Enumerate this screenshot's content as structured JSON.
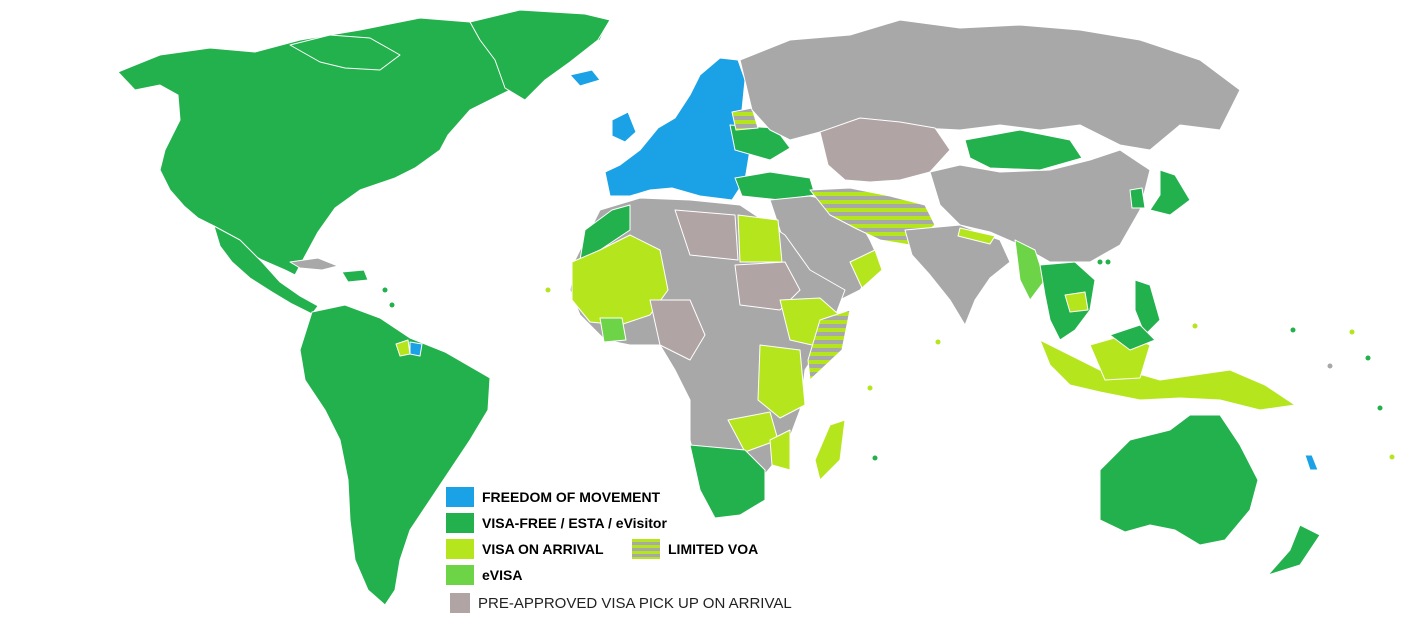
{
  "colors": {
    "freedom": "#1AA1E6",
    "visa_free": "#22B14C",
    "voa": "#B5E61D",
    "evisa": "#6DD347",
    "preapproved": "#B0A4A4",
    "visa_required": "#A8A8A8",
    "limited_voa_stripe_a": "#B5E61D",
    "limited_voa_stripe_b": "#A8A8A8"
  },
  "legend": {
    "freedom": "FREEDOM OF MOVEMENT",
    "visa_free": "VISA-FREE / ESTA / eVisitor",
    "voa": "VISA ON ARRIVAL",
    "limited_voa": "LIMITED VOA",
    "evisa": "eVISA",
    "preapproved": "PRE-APPROVED VISA PICK UP ON ARRIVAL"
  }
}
